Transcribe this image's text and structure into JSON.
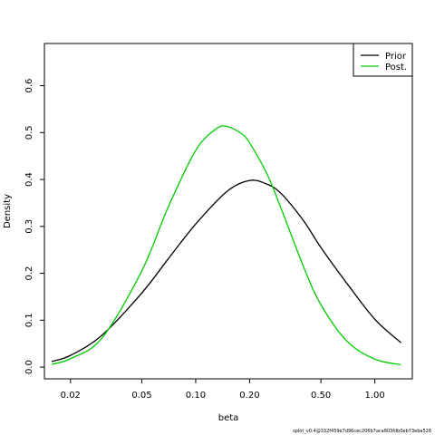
{
  "chart_data": {
    "type": "line",
    "title": "",
    "xlabel": "beta",
    "ylabel": "Density",
    "x_scale": "log",
    "xlim": [
      0.0143,
      1.62
    ],
    "ylim": [
      -0.025,
      0.69
    ],
    "x_ticks": [
      0.02,
      0.05,
      0.1,
      0.2,
      0.5,
      1.0
    ],
    "x_tick_labels": [
      "0.02",
      "0.05",
      "0.10",
      "0.20",
      "0.50",
      "1.00"
    ],
    "y_ticks": [
      0.0,
      0.1,
      0.2,
      0.3,
      0.4,
      0.5,
      0.6
    ],
    "y_tick_labels": [
      "0.0",
      "0.1",
      "0.2",
      "0.3",
      "0.4",
      "0.5",
      "0.6"
    ],
    "grid": false,
    "legend": {
      "position": "top-right",
      "entries": [
        "Prior",
        "Post."
      ]
    },
    "series": [
      {
        "name": "Prior",
        "color": "#000000",
        "x": [
          0.0157,
          0.02,
          0.03,
          0.05,
          0.07,
          0.1,
          0.15,
          0.2,
          0.25,
          0.3,
          0.4,
          0.5,
          0.7,
          1.0,
          1.4
        ],
        "y": [
          0.012,
          0.025,
          0.068,
          0.158,
          0.23,
          0.305,
          0.375,
          0.398,
          0.39,
          0.37,
          0.312,
          0.255,
          0.178,
          0.102,
          0.052
        ]
      },
      {
        "name": "Post.",
        "color": "#00cc00",
        "x": [
          0.0157,
          0.02,
          0.03,
          0.05,
          0.07,
          0.1,
          0.13,
          0.15,
          0.18,
          0.2,
          0.25,
          0.3,
          0.4,
          0.5,
          0.7,
          1.0,
          1.4
        ],
        "y": [
          0.006,
          0.018,
          0.062,
          0.205,
          0.34,
          0.462,
          0.508,
          0.513,
          0.498,
          0.478,
          0.412,
          0.338,
          0.214,
          0.133,
          0.055,
          0.017,
          0.005
        ]
      }
    ]
  },
  "footer": "splot_v0.4@332f459e7d96cec206b7aca803fdb0eb73eba526"
}
